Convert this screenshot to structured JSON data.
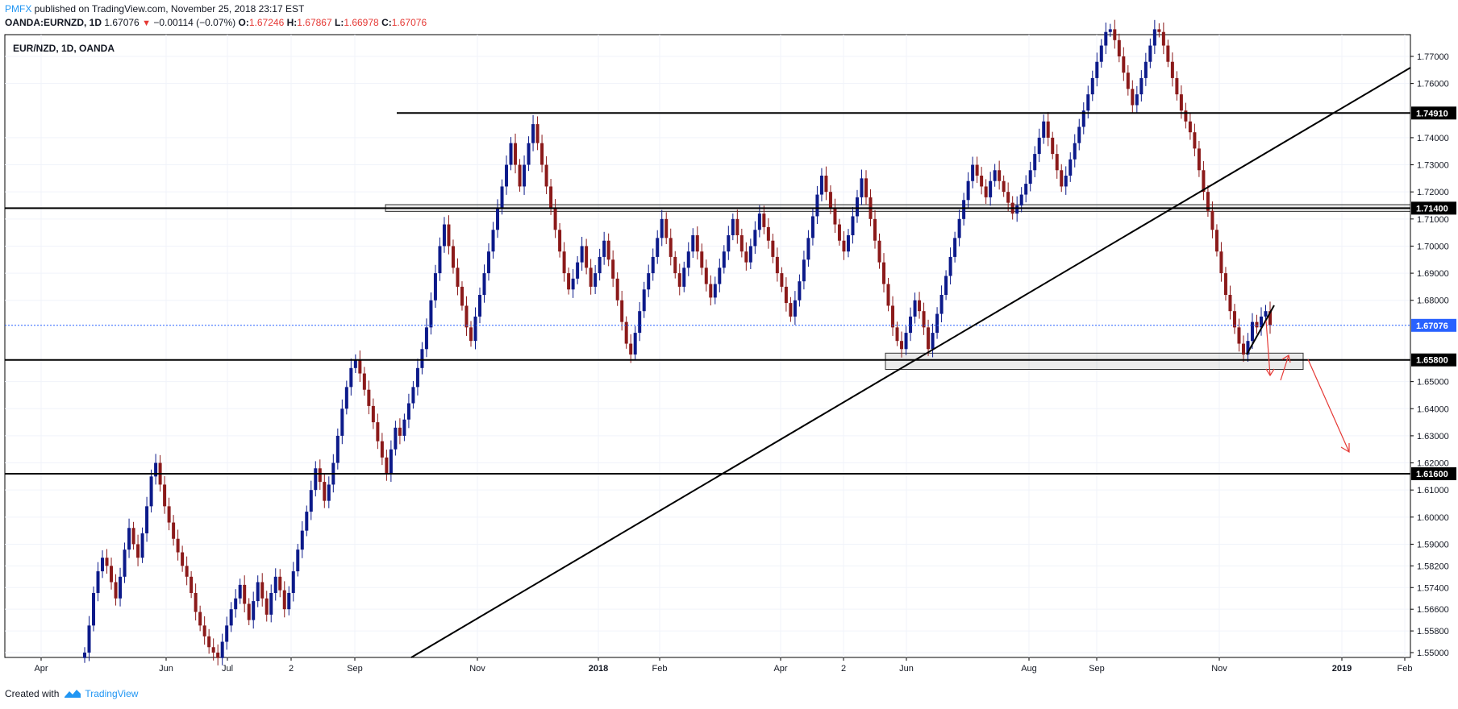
{
  "header": {
    "publisher": "PMFX",
    "published_text": " published on TradingView.com, November 25, 2018 23:17 EST",
    "symbol": "OANDA:EURNZD, 1D",
    "last": "1.67076",
    "change": "−0.00114 (−0.07%)",
    "open_label": "O:",
    "open": "1.67246",
    "high_label": "H:",
    "high": "1.67867",
    "low_label": "L:",
    "low": "1.66978",
    "close_label": "C:",
    "close": "1.67076"
  },
  "footer": {
    "created_with": "Created with",
    "brand": "TradingView"
  },
  "colors": {
    "up_candle": "#0c1a8a",
    "down_candle": "#8b1a1a",
    "line": "#000000",
    "price_tag": "#2962ff",
    "arrow": "#e53935"
  },
  "chart_data": {
    "type": "candlestick",
    "title": "EUR/NZD, 1D, OANDA",
    "x_tick_labels": [
      "Apr",
      "Jun",
      "Jul",
      "2",
      "Sep",
      "Nov",
      "2018",
      "Feb",
      "Apr",
      "2",
      "Jun",
      "Aug",
      "Sep",
      "Nov",
      "2019",
      "Feb"
    ],
    "y_tick_labels": [
      "1.77000",
      "1.76000",
      "1.74000",
      "1.73000",
      "1.72000",
      "1.71000",
      "1.70000",
      "1.69000",
      "1.68000",
      "1.65000",
      "1.64000",
      "1.63000",
      "1.62000",
      "1.61000",
      "1.60000",
      "1.59000",
      "1.58200",
      "1.57400",
      "1.56600",
      "1.55800",
      "1.55000"
    ],
    "ylim": [
      1.5495,
      1.7775
    ],
    "last_price": 1.67076,
    "price_levels": [
      {
        "value": 1.7491,
        "label": "1.74910"
      },
      {
        "value": 1.714,
        "label": "1.71400"
      },
      {
        "value": 1.658,
        "label": "1.65800"
      },
      {
        "value": 1.616,
        "label": "1.61600"
      }
    ],
    "current_price_label": "1.67076",
    "closes": [
      1.55,
      1.56,
      1.572,
      1.58,
      1.585,
      1.582,
      1.576,
      1.57,
      1.578,
      1.588,
      1.596,
      1.59,
      1.585,
      1.594,
      1.604,
      1.615,
      1.62,
      1.612,
      1.604,
      1.598,
      1.592,
      1.587,
      1.582,
      1.578,
      1.572,
      1.565,
      1.56,
      1.556,
      1.552,
      1.55,
      1.548,
      1.554,
      1.56,
      1.566,
      1.57,
      1.575,
      1.568,
      1.562,
      1.569,
      1.576,
      1.57,
      1.564,
      1.572,
      1.578,
      1.573,
      1.566,
      1.572,
      1.58,
      1.588,
      1.595,
      1.602,
      1.61,
      1.618,
      1.613,
      1.606,
      1.612,
      1.62,
      1.63,
      1.64,
      1.648,
      1.655,
      1.658,
      1.653,
      1.647,
      1.641,
      1.635,
      1.628,
      1.622,
      1.616,
      1.625,
      1.633,
      1.63,
      1.636,
      1.642,
      1.648,
      1.655,
      1.662,
      1.67,
      1.68,
      1.69,
      1.7,
      1.708,
      1.7,
      1.692,
      1.685,
      1.678,
      1.67,
      1.665,
      1.674,
      1.682,
      1.69,
      1.698,
      1.706,
      1.714,
      1.722,
      1.73,
      1.738,
      1.73,
      1.722,
      1.73,
      1.738,
      1.745,
      1.738,
      1.73,
      1.722,
      1.714,
      1.706,
      1.698,
      1.69,
      1.684,
      1.688,
      1.694,
      1.7,
      1.692,
      1.685,
      1.69,
      1.696,
      1.702,
      1.695,
      1.688,
      1.68,
      1.672,
      1.664,
      1.66,
      1.668,
      1.676,
      1.684,
      1.69,
      1.696,
      1.703,
      1.71,
      1.703,
      1.696,
      1.69,
      1.685,
      1.692,
      1.698,
      1.704,
      1.698,
      1.692,
      1.686,
      1.681,
      1.686,
      1.692,
      1.698,
      1.704,
      1.71,
      1.704,
      1.698,
      1.694,
      1.7,
      1.706,
      1.712,
      1.707,
      1.702,
      1.696,
      1.69,
      1.685,
      1.679,
      1.674,
      1.68,
      1.687,
      1.695,
      1.703,
      1.711,
      1.719,
      1.726,
      1.72,
      1.714,
      1.708,
      1.702,
      1.698,
      1.704,
      1.711,
      1.718,
      1.725,
      1.718,
      1.71,
      1.702,
      1.694,
      1.686,
      1.678,
      1.67,
      1.665,
      1.662,
      1.668,
      1.674,
      1.68,
      1.676,
      1.67,
      1.662,
      1.668,
      1.675,
      1.682,
      1.689,
      1.696,
      1.703,
      1.71,
      1.717,
      1.724,
      1.73,
      1.726,
      1.722,
      1.718,
      1.724,
      1.728,
      1.724,
      1.72,
      1.716,
      1.712,
      1.715,
      1.719,
      1.723,
      1.728,
      1.734,
      1.74,
      1.746,
      1.74,
      1.734,
      1.728,
      1.722,
      1.726,
      1.732,
      1.738,
      1.744,
      1.75,
      1.756,
      1.762,
      1.768,
      1.774,
      1.779,
      1.78,
      1.776,
      1.77,
      1.764,
      1.758,
      1.752,
      1.756,
      1.762,
      1.768,
      1.774,
      1.78,
      1.779,
      1.774,
      1.768,
      1.762,
      1.756,
      1.75,
      1.746,
      1.742,
      1.736,
      1.728,
      1.72,
      1.713,
      1.706,
      1.698,
      1.69,
      1.682,
      1.676,
      1.67,
      1.664,
      1.66,
      1.665,
      1.672,
      1.67,
      1.674,
      1.676,
      1.6708
    ],
    "support_zones": [
      {
        "from": 1.7128,
        "to": 1.7153,
        "label": ""
      },
      {
        "from": 1.6545,
        "to": 1.6605,
        "label": ""
      }
    ],
    "trendline": "rising line from lower left, crossing 1.658 near June 2018 and 1.714 near late Oct 2018",
    "arrows": "red arrows projecting a break lower toward 1.616"
  }
}
